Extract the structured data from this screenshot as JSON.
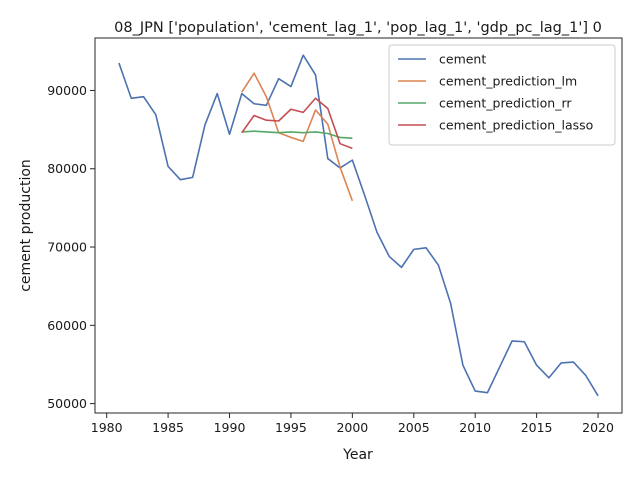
{
  "chart_data": {
    "type": "line",
    "title": "08_JPN ['population', 'cement_lag_1', 'pop_lag_1', 'gdp_pc_lag_1'] 0",
    "xlabel": "Year",
    "ylabel": "cement production",
    "xlim": [
      1979.05,
      2021.95
    ],
    "ylim": [
      48800,
      96700
    ],
    "xticks": [
      1980,
      1985,
      1990,
      1995,
      2000,
      2005,
      2010,
      2015,
      2020
    ],
    "yticks": [
      50000,
      60000,
      70000,
      80000,
      90000
    ],
    "grid": false,
    "legend_position": "top-right",
    "series": [
      {
        "name": "cement",
        "color": "#4c72b0",
        "x": [
          1981,
          1982,
          1983,
          1984,
          1985,
          1986,
          1987,
          1988,
          1989,
          1990,
          1991,
          1992,
          1993,
          1994,
          1995,
          1996,
          1997,
          1998,
          1999,
          2000,
          2001,
          2002,
          2003,
          2004,
          2005,
          2006,
          2007,
          2008,
          2009,
          2010,
          2011,
          2012,
          2013,
          2014,
          2015,
          2016,
          2017,
          2018,
          2019,
          2020
        ],
        "y": [
          93500,
          89000,
          89200,
          86900,
          80300,
          78600,
          78900,
          85600,
          89600,
          84400,
          89600,
          88300,
          88100,
          91500,
          90500,
          94500,
          92000,
          81300,
          80100,
          81100,
          76600,
          71900,
          68800,
          67400,
          69700,
          69900,
          67700,
          62800,
          54900,
          51600,
          51400,
          54700,
          58000,
          57900,
          54900,
          53300,
          55200,
          55300,
          53600,
          51000
        ]
      },
      {
        "name": "cement_prediction_lm",
        "color": "#dd8452",
        "x": [
          1991,
          1992,
          1993,
          1994,
          1995,
          1996,
          1997,
          1998,
          1999,
          2000
        ],
        "y": [
          89800,
          92200,
          89200,
          84600,
          84000,
          83500,
          87500,
          85700,
          80200,
          75900
        ]
      },
      {
        "name": "cement_prediction_rr",
        "color": "#55a868",
        "x": [
          1991,
          1992,
          1993,
          1994,
          1995,
          1996,
          1997,
          1998,
          1999,
          2000
        ],
        "y": [
          84700,
          84800,
          84700,
          84600,
          84700,
          84600,
          84700,
          84500,
          84000,
          83900
        ]
      },
      {
        "name": "cement_prediction_lasso",
        "color": "#c44e52",
        "x": [
          1991,
          1992,
          1993,
          1994,
          1995,
          1996,
          1997,
          1998,
          1999,
          2000
        ],
        "y": [
          84600,
          86800,
          86200,
          86100,
          87600,
          87200,
          89000,
          87700,
          83200,
          82600
        ]
      }
    ]
  }
}
